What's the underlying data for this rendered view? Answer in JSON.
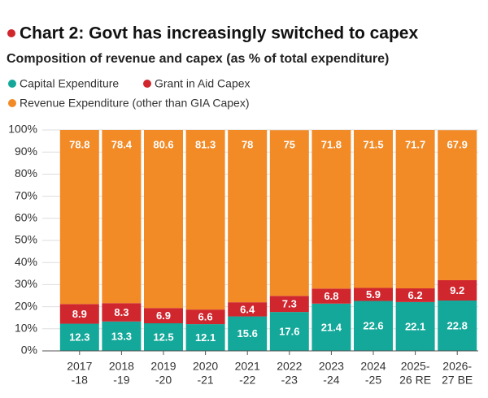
{
  "chart_data": {
    "type": "stacked-bar",
    "title": "Chart 2: Govt has increasingly switched to capex",
    "subtitle": "Composition of revenue and capex (as % of total expenditure)",
    "categories": [
      [
        "2017",
        "-18"
      ],
      [
        "2018",
        "-19"
      ],
      [
        "2019",
        "-20"
      ],
      [
        "2020",
        "-21"
      ],
      [
        "2021",
        "-22"
      ],
      [
        "2022",
        "-23"
      ],
      [
        "2023",
        "-24"
      ],
      [
        "2024",
        "-25"
      ],
      [
        "2025-",
        "26 RE"
      ],
      [
        "2026-",
        "27 BE"
      ]
    ],
    "series": [
      {
        "name": "Capital Expenditure",
        "color": "#14a89a",
        "values": [
          12.3,
          13.3,
          12.5,
          12.1,
          15.6,
          17.6,
          21.4,
          22.6,
          22.1,
          22.8
        ]
      },
      {
        "name": "Grant in Aid Capex",
        "color": "#d0262e",
        "values": [
          8.9,
          8.3,
          6.9,
          6.6,
          6.4,
          7.3,
          6.8,
          5.9,
          6.2,
          9.2
        ]
      },
      {
        "name": "Revenue Expenditure (other than GIA Capex)",
        "color": "#f28a26",
        "values": [
          78.8,
          78.4,
          80.6,
          81.3,
          78,
          75,
          71.8,
          71.5,
          71.7,
          67.9
        ]
      }
    ],
    "ylim": [
      0,
      100
    ],
    "yticks": [
      {
        "value": 0,
        "label": "0%"
      },
      {
        "value": 10,
        "label": "10%"
      },
      {
        "value": 20,
        "label": "20%"
      },
      {
        "value": 30,
        "label": "30%"
      },
      {
        "value": 40,
        "label": "40%"
      },
      {
        "value": 50,
        "label": "50%"
      },
      {
        "value": 60,
        "label": "60%"
      },
      {
        "value": 70,
        "label": "70%"
      },
      {
        "value": 80,
        "label": "80%"
      },
      {
        "value": 90,
        "label": "90%"
      },
      {
        "value": 100,
        "label": "100%"
      }
    ],
    "grid": true
  }
}
